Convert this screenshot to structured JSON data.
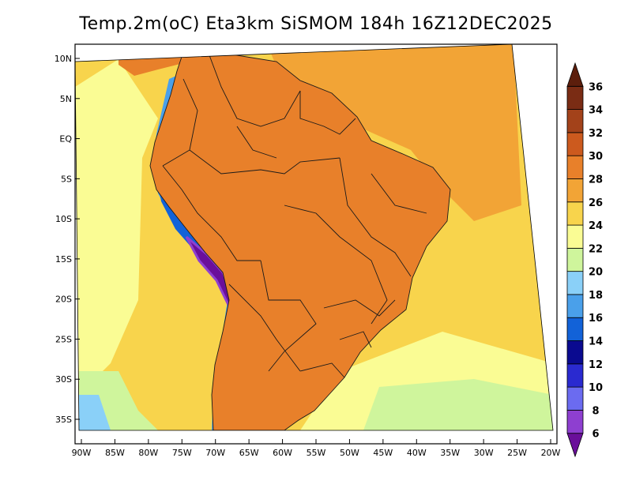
{
  "title": "Temp.2m(oC) Eta3km SiSMOM 184h 16Z12DEC2025",
  "map": {
    "variable": "2 m air temperature",
    "units": "oC",
    "model": "Eta3km SiSMOM",
    "forecast_hour": "184h",
    "valid_time": "16Z12DEC2025",
    "region": "South America",
    "lon_range": [
      -90,
      -20
    ],
    "lat_range": [
      -38,
      11
    ],
    "lat_ticks": [
      {
        "lat": 10,
        "label": "10N"
      },
      {
        "lat": 5,
        "label": "5N"
      },
      {
        "lat": 0,
        "label": "EQ"
      },
      {
        "lat": -5,
        "label": "5S"
      },
      {
        "lat": -10,
        "label": "10S"
      },
      {
        "lat": -15,
        "label": "15S"
      },
      {
        "lat": -20,
        "label": "20S"
      },
      {
        "lat": -25,
        "label": "25S"
      },
      {
        "lat": -30,
        "label": "30S"
      },
      {
        "lat": -35,
        "label": "35S"
      }
    ],
    "lon_ticks": [
      {
        "lon": -90,
        "label": "90W"
      },
      {
        "lon": -85,
        "label": "85W"
      },
      {
        "lon": -80,
        "label": "80W"
      },
      {
        "lon": -75,
        "label": "75W"
      },
      {
        "lon": -70,
        "label": "70W"
      },
      {
        "lon": -65,
        "label": "65W"
      },
      {
        "lon": -60,
        "label": "60W"
      },
      {
        "lon": -55,
        "label": "55W"
      },
      {
        "lon": -50,
        "label": "50W"
      },
      {
        "lon": -45,
        "label": "45W"
      },
      {
        "lon": -40,
        "label": "40W"
      },
      {
        "lon": -35,
        "label": "35W"
      },
      {
        "lon": -30,
        "label": "30W"
      },
      {
        "lon": -25,
        "label": "25W"
      },
      {
        "lon": -20,
        "label": "20W"
      }
    ]
  },
  "colorbar": {
    "levels": [
      6,
      8,
      10,
      12,
      14,
      16,
      18,
      20,
      22,
      24,
      26,
      28,
      30,
      32,
      34,
      36
    ],
    "colors": [
      "#6a0f9a",
      "#8e3fd0",
      "#6b6bf0",
      "#2a2ad0",
      "#0a0a90",
      "#1262d8",
      "#4aa0ea",
      "#8ad0f8",
      "#cff59c",
      "#fafc94",
      "#f8d44c",
      "#f2a436",
      "#e8802a",
      "#cc5a1e",
      "#a3421a",
      "#7a2c14",
      "#5c1e0c"
    ]
  }
}
